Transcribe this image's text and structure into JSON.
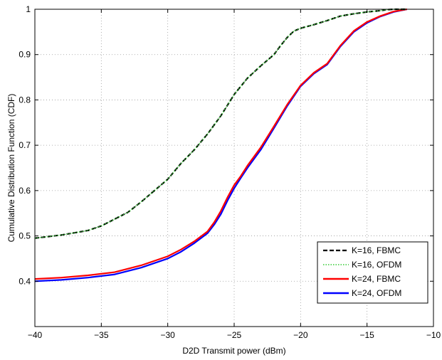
{
  "chart_data": {
    "type": "line",
    "title": "",
    "xlabel": "D2D Transmit power (dBm)",
    "ylabel": "Cumulative Distribution Function (CDF)",
    "xlim": [
      -40,
      -10
    ],
    "ylim": [
      0.3,
      1.0
    ],
    "xticks": [
      -40,
      -35,
      -30,
      -25,
      -20,
      -15,
      -10
    ],
    "yticks": [
      0.4,
      0.5,
      0.6,
      0.7,
      0.8,
      0.9,
      1
    ],
    "xtick_labels": [
      "−40",
      "−35",
      "−30",
      "−25",
      "−20",
      "−15",
      "−10"
    ],
    "ytick_labels": [
      "0.4",
      "0.5",
      "0.6",
      "0.7",
      "0.8",
      "0.9",
      "1"
    ],
    "grid": true,
    "legend_position": "lower-right",
    "series": [
      {
        "name": "K=16, FBMC",
        "color": "#000000",
        "style": "dashed",
        "x": [
          -40,
          -38,
          -36,
          -35,
          -34,
          -33,
          -32,
          -31,
          -30,
          -29,
          -28,
          -27,
          -26,
          -25,
          -24,
          -23,
          -22,
          -21.5,
          -21,
          -20.5,
          -20,
          -19,
          -18,
          -17,
          -16,
          -15,
          -14,
          -13.5,
          -13,
          -12
        ],
        "y": [
          0.495,
          0.502,
          0.512,
          0.522,
          0.537,
          0.552,
          0.575,
          0.6,
          0.625,
          0.66,
          0.69,
          0.725,
          0.765,
          0.812,
          0.848,
          0.875,
          0.9,
          0.92,
          0.938,
          0.952,
          0.958,
          0.966,
          0.975,
          0.985,
          0.99,
          0.994,
          0.997,
          0.999,
          1.0,
          1.0
        ]
      },
      {
        "name": "K=16, OFDM",
        "color": "#33cc33",
        "style": "dotted",
        "x": [
          -40,
          -38,
          -36,
          -35,
          -34,
          -33,
          -32,
          -31,
          -30,
          -29,
          -28,
          -27,
          -26,
          -25,
          -24,
          -23,
          -22,
          -21.5,
          -21,
          -20.5,
          -20,
          -19,
          -18,
          -17,
          -16,
          -15,
          -14,
          -13.5,
          -13,
          -12
        ],
        "y": [
          0.495,
          0.502,
          0.512,
          0.522,
          0.537,
          0.552,
          0.575,
          0.6,
          0.625,
          0.66,
          0.69,
          0.725,
          0.765,
          0.812,
          0.848,
          0.875,
          0.9,
          0.92,
          0.938,
          0.952,
          0.958,
          0.966,
          0.975,
          0.985,
          0.99,
          0.994,
          0.997,
          0.999,
          1.0,
          1.0
        ]
      },
      {
        "name": "K=24, FBMC",
        "color": "#ff0000",
        "style": "solid",
        "x": [
          -40,
          -38,
          -36,
          -34,
          -32,
          -30,
          -29,
          -28,
          -27,
          -26.5,
          -26,
          -25.5,
          -25,
          -24.5,
          -24,
          -23,
          -22,
          -21,
          -20,
          -19,
          -18,
          -17,
          -16,
          -15,
          -14,
          -13,
          -12
        ],
        "y": [
          0.405,
          0.408,
          0.413,
          0.42,
          0.435,
          0.455,
          0.47,
          0.488,
          0.51,
          0.53,
          0.555,
          0.585,
          0.612,
          0.632,
          0.655,
          0.695,
          0.742,
          0.79,
          0.832,
          0.86,
          0.88,
          0.92,
          0.952,
          0.972,
          0.985,
          0.995,
          1.0
        ]
      },
      {
        "name": "K=24, OFDM",
        "color": "#0000ff",
        "style": "solid",
        "x": [
          -40,
          -38,
          -36,
          -34,
          -32,
          -30,
          -29,
          -28,
          -27,
          -26.5,
          -26,
          -25.5,
          -25,
          -24.5,
          -24,
          -23,
          -22,
          -21,
          -20,
          -19,
          -18,
          -17,
          -16,
          -15,
          -14,
          -13,
          -12
        ],
        "y": [
          0.4,
          0.403,
          0.408,
          0.415,
          0.43,
          0.45,
          0.465,
          0.484,
          0.506,
          0.525,
          0.548,
          0.578,
          0.605,
          0.628,
          0.65,
          0.69,
          0.738,
          0.787,
          0.83,
          0.858,
          0.878,
          0.918,
          0.95,
          0.97,
          0.984,
          0.994,
          1.0
        ]
      }
    ]
  }
}
